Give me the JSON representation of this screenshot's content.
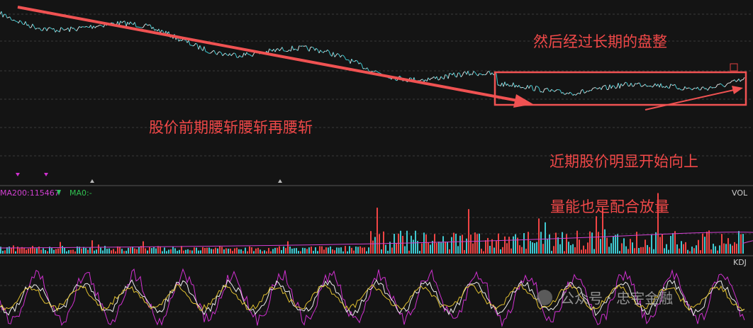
{
  "annotations": {
    "consolidation": "然后经过长期的盘整",
    "halving": "股价前期腰斩腰斩再腰斩",
    "rising": "近期股价明显开始向上",
    "volume": "量能也是配合放量"
  },
  "volume_panel": {
    "ma200": "MA200:115467",
    "ma0": "MA0:-",
    "label": "VOL"
  },
  "kdj_panel": {
    "label": "KDJ"
  },
  "watermark": "公众号 · 忠宇金融"
}
